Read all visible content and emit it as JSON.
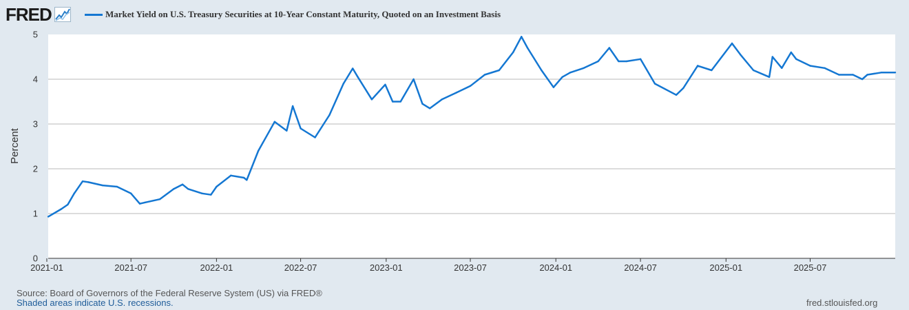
{
  "brand": {
    "name": "FRED"
  },
  "chart_data": {
    "type": "line",
    "title": "Market Yield on U.S. Treasury Securities at 10-Year Constant Maturity, Quoted on an Investment Basis",
    "ylabel": "Percent",
    "xlabel": "",
    "ylim": [
      0,
      5
    ],
    "xlim": [
      "2021-01-04",
      "2025-12-31"
    ],
    "y_ticks": [
      "0",
      "1",
      "2",
      "3",
      "4",
      "5"
    ],
    "x_ticks": [
      "2021-01",
      "2021-07",
      "2022-01",
      "2022-07",
      "2023-01",
      "2023-07",
      "2024-01",
      "2024-07",
      "2025-01",
      "2025-07"
    ],
    "grid": true,
    "line_color": "#1477d2",
    "series": [
      {
        "name": "DGS10",
        "x": [
          "2021-01-04",
          "2021-02-01",
          "2021-02-15",
          "2021-03-01",
          "2021-03-19",
          "2021-04-01",
          "2021-05-01",
          "2021-06-01",
          "2021-07-01",
          "2021-07-20",
          "2021-08-01",
          "2021-09-01",
          "2021-10-01",
          "2021-10-20",
          "2021-11-01",
          "2021-12-01",
          "2021-12-20",
          "2022-01-01",
          "2022-02-01",
          "2022-03-01",
          "2022-03-07",
          "2022-04-01",
          "2022-05-06",
          "2022-06-01",
          "2022-06-14",
          "2022-07-01",
          "2022-08-01",
          "2022-09-01",
          "2022-10-01",
          "2022-10-21",
          "2022-11-01",
          "2022-12-01",
          "2022-12-30",
          "2023-01-15",
          "2023-02-01",
          "2023-03-01",
          "2023-03-20",
          "2023-04-05",
          "2023-05-01",
          "2023-06-01",
          "2023-07-01",
          "2023-08-01",
          "2023-09-01",
          "2023-10-01",
          "2023-10-19",
          "2023-11-01",
          "2023-12-01",
          "2023-12-27",
          "2024-01-15",
          "2024-02-01",
          "2024-03-01",
          "2024-04-01",
          "2024-04-25",
          "2024-05-15",
          "2024-06-01",
          "2024-07-01",
          "2024-08-01",
          "2024-09-16",
          "2024-10-01",
          "2024-11-01",
          "2024-12-01",
          "2025-01-14",
          "2025-02-01",
          "2025-03-01",
          "2025-04-04",
          "2025-04-11",
          "2025-05-01",
          "2025-05-21",
          "2025-06-01",
          "2025-07-01",
          "2025-08-01",
          "2025-09-01",
          "2025-10-01",
          "2025-10-21",
          "2025-11-01",
          "2025-12-01",
          "2025-12-31"
        ],
        "values": [
          0.93,
          1.1,
          1.2,
          1.45,
          1.72,
          1.7,
          1.63,
          1.6,
          1.45,
          1.22,
          1.25,
          1.32,
          1.55,
          1.65,
          1.55,
          1.45,
          1.42,
          1.6,
          1.85,
          1.8,
          1.75,
          2.4,
          3.05,
          2.85,
          3.4,
          2.9,
          2.7,
          3.2,
          3.9,
          4.24,
          4.05,
          3.55,
          3.88,
          3.5,
          3.5,
          4.0,
          3.45,
          3.35,
          3.55,
          3.7,
          3.85,
          4.1,
          4.2,
          4.6,
          4.95,
          4.7,
          4.2,
          3.82,
          4.05,
          4.15,
          4.25,
          4.4,
          4.7,
          4.4,
          4.4,
          4.45,
          3.9,
          3.65,
          3.8,
          4.3,
          4.2,
          4.8,
          4.55,
          4.2,
          4.05,
          4.5,
          4.25,
          4.6,
          4.45,
          4.3,
          4.25,
          4.1,
          4.1,
          4.0,
          4.1,
          4.15,
          4.15
        ]
      }
    ]
  },
  "footer": {
    "source": "Source: Board of Governors of the Federal Reserve System (US) via FRED®",
    "recessions": "Shaded areas indicate U.S. recessions.",
    "url": "fred.stlouisfed.org"
  }
}
